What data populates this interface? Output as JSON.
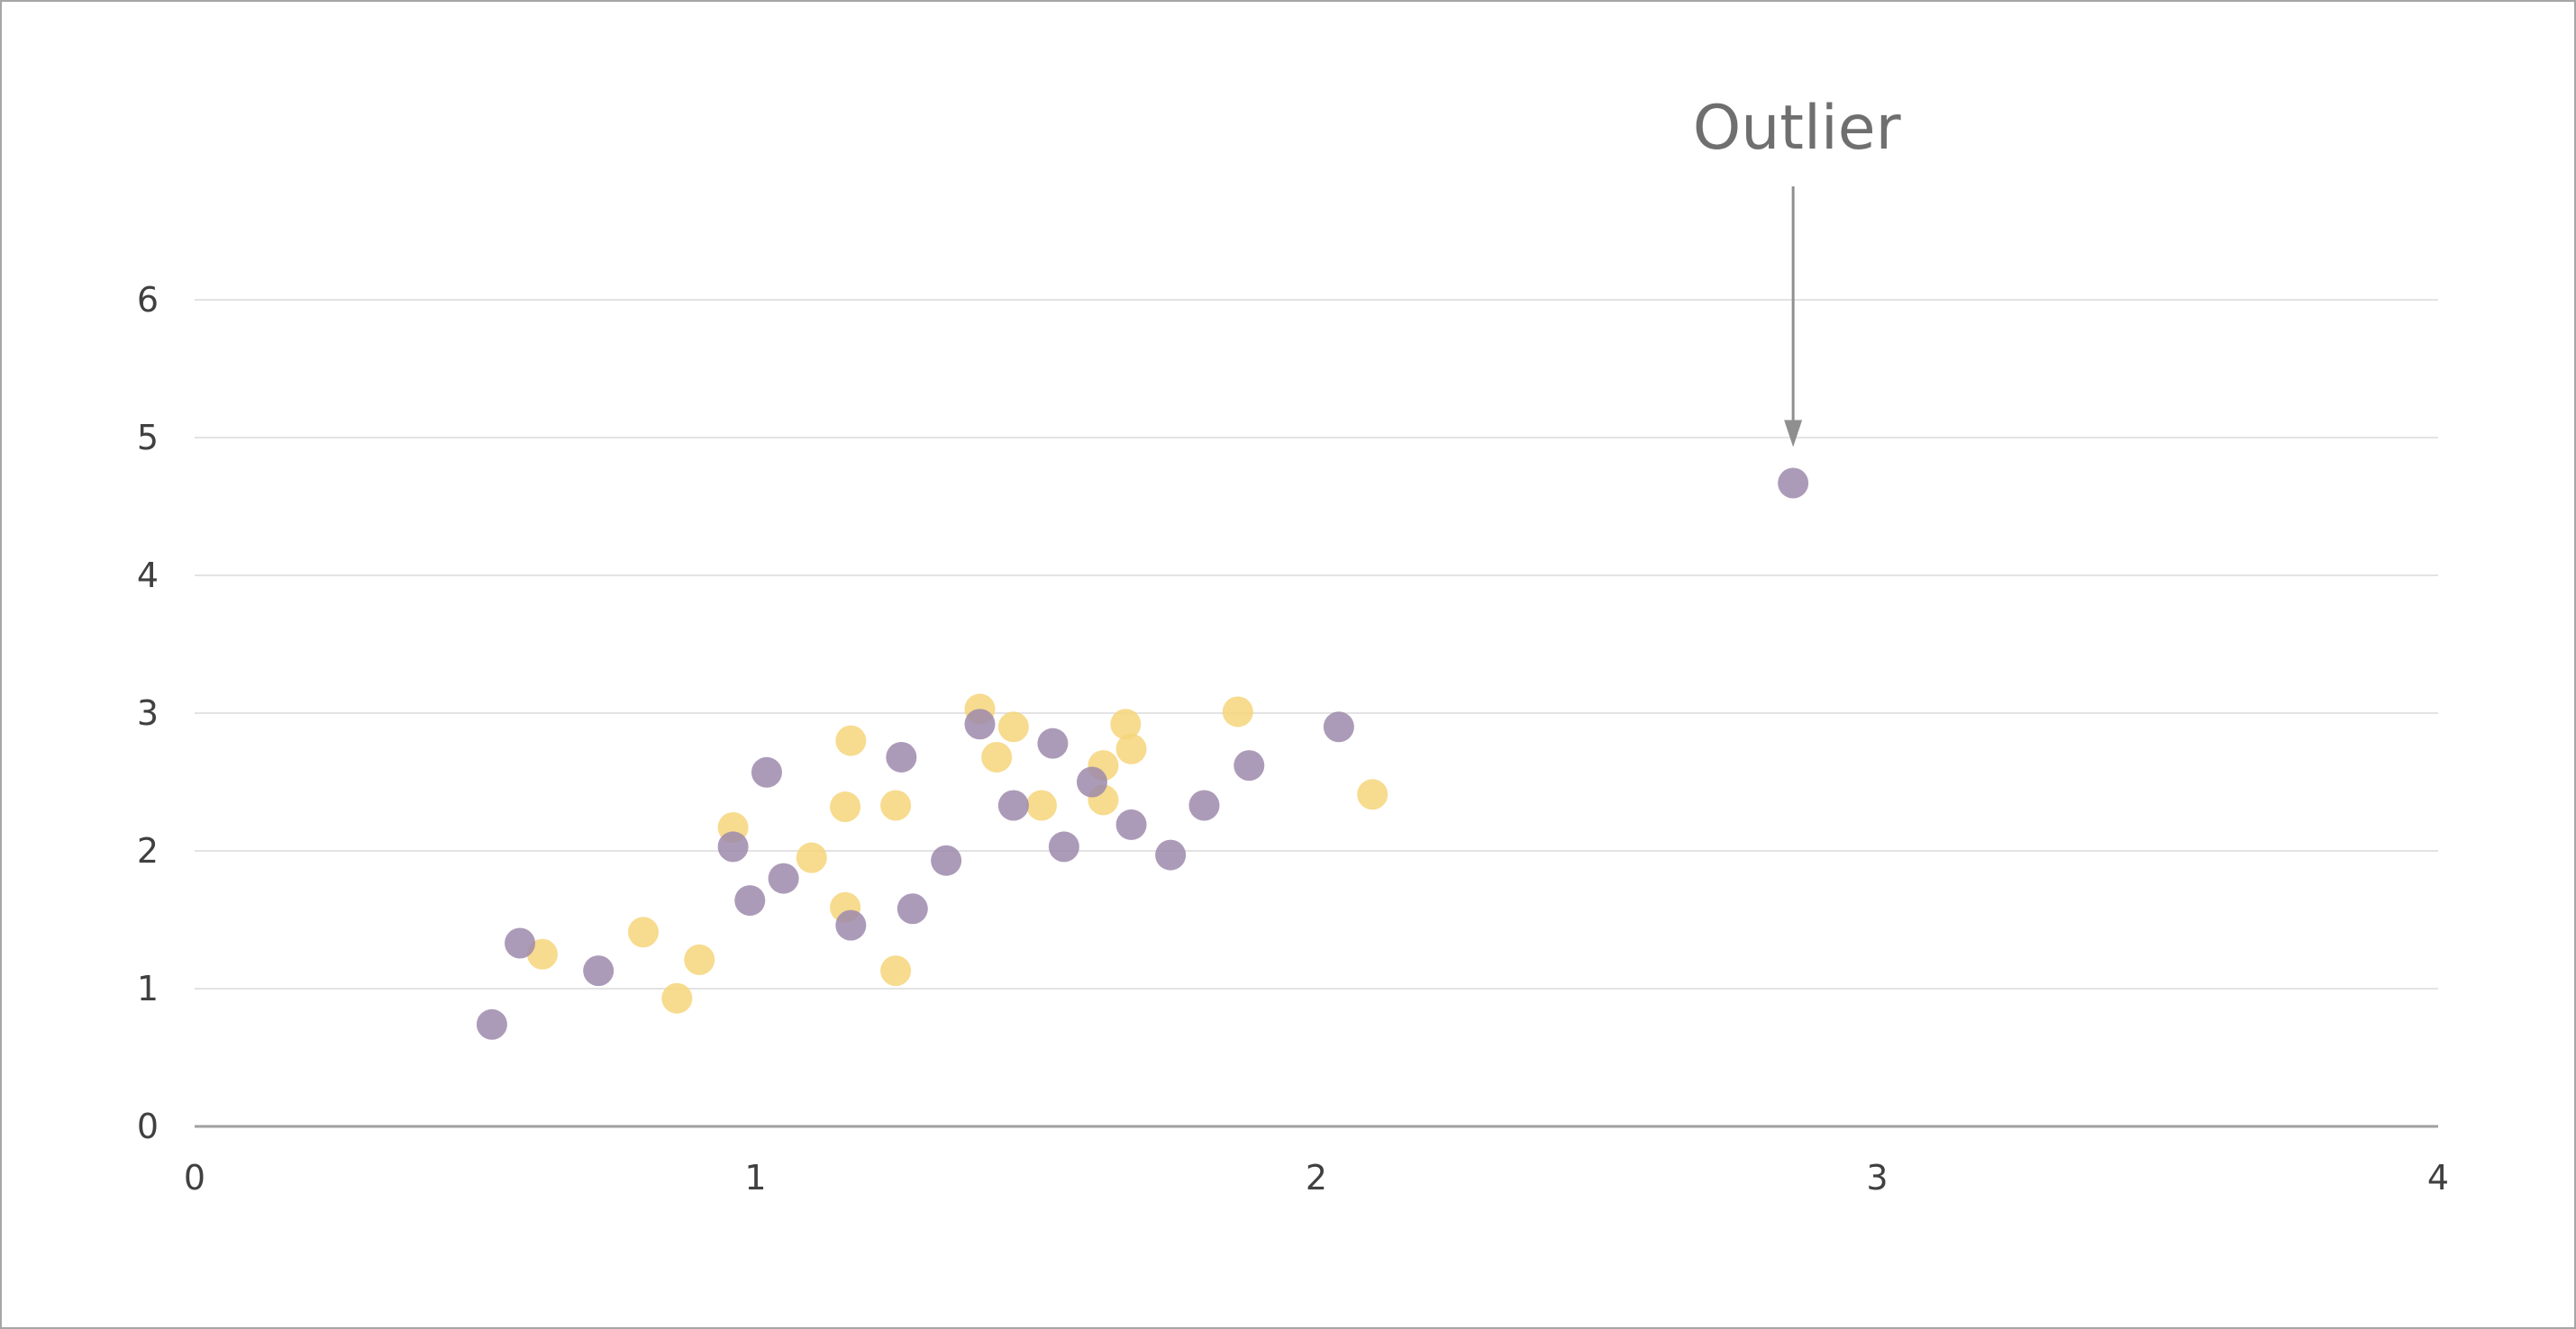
{
  "chart_data": {
    "type": "scatter",
    "title": "",
    "xlabel": "",
    "ylabel": "",
    "xlim": [
      0,
      4
    ],
    "ylim": [
      0,
      6
    ],
    "x_ticks": [
      "0",
      "1",
      "2",
      "3",
      "4"
    ],
    "y_ticks": [
      "0",
      "1",
      "2",
      "3",
      "4",
      "5",
      "6"
    ],
    "grid": "horizontal",
    "legend": "none",
    "colors": {
      "purple": "#9d8aab",
      "yellow": "#f6d57a",
      "grid": "#e3e3e3",
      "axis": "#a0a0a0",
      "annotation": "#6f6f6f"
    },
    "series": [
      {
        "color": "#f6d57a",
        "points": [
          [
            0.62,
            1.25
          ],
          [
            0.8,
            1.41
          ],
          [
            0.86,
            0.93
          ],
          [
            0.9,
            1.21
          ],
          [
            0.96,
            2.17
          ],
          [
            1.1,
            1.95
          ],
          [
            1.16,
            2.32
          ],
          [
            1.16,
            1.59
          ],
          [
            1.17,
            2.8
          ],
          [
            1.25,
            2.33
          ],
          [
            1.25,
            1.13
          ],
          [
            1.4,
            3.03
          ],
          [
            1.43,
            2.68
          ],
          [
            1.46,
            2.9
          ],
          [
            1.51,
            2.33
          ],
          [
            1.62,
            2.37
          ],
          [
            1.62,
            2.62
          ],
          [
            1.66,
            2.92
          ],
          [
            1.67,
            2.74
          ],
          [
            1.86,
            3.01
          ],
          [
            2.1,
            2.41
          ]
        ]
      },
      {
        "color": "#9d8aab",
        "points": [
          [
            0.53,
            0.74
          ],
          [
            0.58,
            1.33
          ],
          [
            0.72,
            1.13
          ],
          [
            0.96,
            2.03
          ],
          [
            0.99,
            1.64
          ],
          [
            1.02,
            2.57
          ],
          [
            1.05,
            1.8
          ],
          [
            1.17,
            1.46
          ],
          [
            1.26,
            2.68
          ],
          [
            1.28,
            1.58
          ],
          [
            1.34,
            1.93
          ],
          [
            1.4,
            2.92
          ],
          [
            1.46,
            2.33
          ],
          [
            1.53,
            2.78
          ],
          [
            1.55,
            2.03
          ],
          [
            1.6,
            2.5
          ],
          [
            1.67,
            2.19
          ],
          [
            1.74,
            1.97
          ],
          [
            1.8,
            2.33
          ],
          [
            1.88,
            2.62
          ],
          [
            2.04,
            2.9
          ],
          [
            2.85,
            4.67
          ]
        ]
      }
    ],
    "annotations": [
      {
        "text": "Outlier",
        "point": [
          2.85,
          4.67
        ]
      }
    ]
  }
}
